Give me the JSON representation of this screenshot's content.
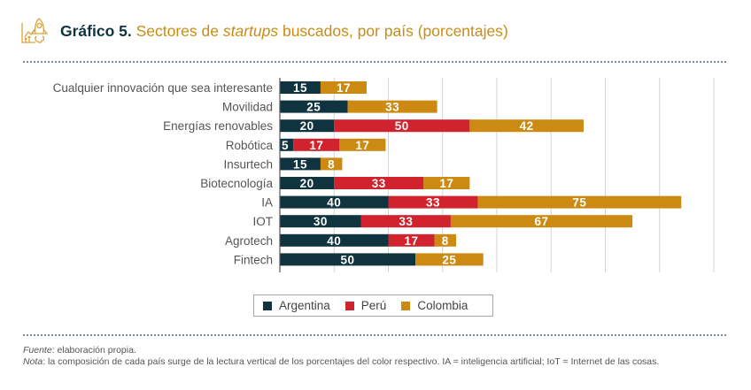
{
  "header": {
    "figure_number": "Gráfico 5.",
    "title_part1": "Sectores de ",
    "title_italic": "startups",
    "title_part2": " buscados, por país (porcentajes)",
    "icon": "rocket-growth-icon"
  },
  "colors": {
    "Argentina": "#0f3440",
    "Perú": "#d0232d",
    "Colombia": "#cd8a12",
    "title_accent": "#c98c14",
    "title_dark": "#0f3440"
  },
  "chart_data": {
    "type": "bar",
    "orientation": "horizontal",
    "stacked": true,
    "title": "Gráfico 5. Sectores de startups buscados, por país (porcentajes)",
    "xlabel": "",
    "ylabel": "",
    "xlim": [
      0,
      160
    ],
    "grid": true,
    "grid_step": 20,
    "legend_position": "bottom",
    "categories": [
      "Cualquier innovación que sea interesante",
      "Movilidad",
      "Energías renovables",
      "Robótica",
      "Insurtech",
      "Biotecnología",
      "IA",
      "IOT",
      "Agrotech",
      "Fintech"
    ],
    "series": [
      {
        "name": "Argentina",
        "values": [
          15,
          25,
          20,
          5,
          15,
          20,
          40,
          30,
          40,
          50
        ]
      },
      {
        "name": "Perú",
        "values": [
          0,
          0,
          50,
          17,
          0,
          33,
          33,
          33,
          17,
          0
        ]
      },
      {
        "name": "Colombia",
        "values": [
          17,
          33,
          42,
          17,
          8,
          17,
          75,
          67,
          8,
          25
        ]
      }
    ]
  },
  "legend": [
    {
      "label": "Argentina"
    },
    {
      "label": "Perú"
    },
    {
      "label": "Colombia"
    }
  ],
  "notes": {
    "source_label": "Fuente",
    "source_text": ": elaboración propia.",
    "note_label": "Nota",
    "note_text": ": la composición de cada país surge de la lectura vertical de los porcentajes del color respectivo. IA = inteligencia artificial; IoT = Internet de las cosas."
  }
}
